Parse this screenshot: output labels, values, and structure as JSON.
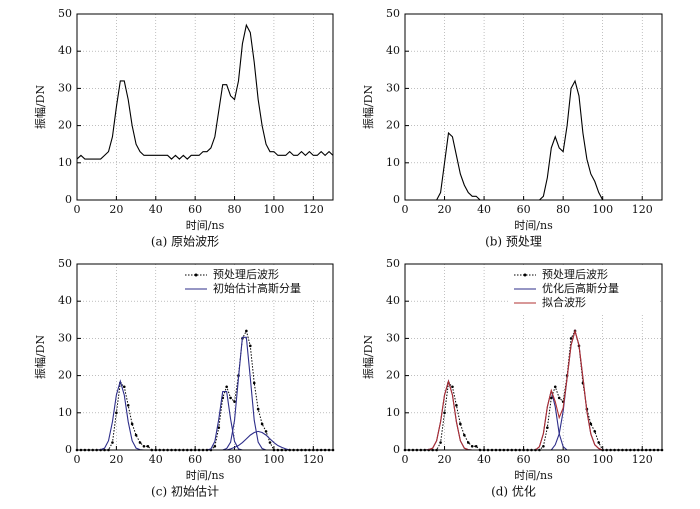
{
  "chart_data": [
    {
      "type": "line",
      "caption": "(a) 原始波形",
      "xlabel": "时间/ns",
      "ylabel": "振幅/DN",
      "xlim": [
        0,
        130
      ],
      "ylim": [
        0,
        50
      ],
      "xticks": [
        0,
        20,
        40,
        60,
        80,
        100,
        120
      ],
      "yticks": [
        0,
        10,
        20,
        30,
        40,
        50
      ],
      "grid": true,
      "x": [
        0,
        2,
        4,
        6,
        8,
        10,
        12,
        14,
        16,
        18,
        20,
        22,
        24,
        26,
        28,
        30,
        32,
        34,
        36,
        38,
        40,
        42,
        44,
        46,
        48,
        50,
        52,
        54,
        56,
        58,
        60,
        62,
        64,
        66,
        68,
        70,
        72,
        74,
        76,
        78,
        80,
        82,
        84,
        86,
        88,
        90,
        92,
        94,
        96,
        98,
        100,
        102,
        104,
        106,
        108,
        110,
        112,
        114,
        116,
        118,
        120,
        122,
        124,
        126,
        128,
        130
      ],
      "series": [
        {
          "color": "#000000",
          "style": "solid",
          "values": [
            11,
            12,
            11,
            11,
            11,
            11,
            11,
            12,
            13,
            17,
            25,
            32,
            32,
            27,
            20,
            15,
            13,
            12,
            12,
            12,
            12,
            12,
            12,
            12,
            11,
            12,
            11,
            12,
            11,
            12,
            12,
            12,
            13,
            13,
            14,
            17,
            24,
            31,
            31,
            28,
            27,
            32,
            42,
            47,
            45,
            37,
            27,
            20,
            15,
            13,
            13,
            12,
            12,
            12,
            13,
            12,
            12,
            13,
            12,
            13,
            12,
            12,
            13,
            12,
            13,
            12
          ]
        }
      ]
    },
    {
      "type": "line",
      "caption": "(b) 预处理",
      "xlabel": "时间/ns",
      "ylabel": "振幅/DN",
      "xlim": [
        0,
        130
      ],
      "ylim": [
        0,
        50
      ],
      "xticks": [
        0,
        20,
        40,
        60,
        80,
        100,
        120
      ],
      "yticks": [
        0,
        10,
        20,
        30,
        40,
        50
      ],
      "grid": true,
      "x": [
        0,
        2,
        4,
        6,
        8,
        10,
        12,
        14,
        16,
        18,
        20,
        22,
        24,
        26,
        28,
        30,
        32,
        34,
        36,
        38,
        40,
        42,
        44,
        46,
        48,
        50,
        52,
        54,
        56,
        58,
        60,
        62,
        64,
        66,
        68,
        70,
        72,
        74,
        76,
        78,
        80,
        82,
        84,
        86,
        88,
        90,
        92,
        94,
        96,
        98,
        100,
        102,
        104,
        106,
        108,
        110,
        112,
        114,
        116,
        118,
        120,
        122,
        124,
        126,
        128,
        130
      ],
      "series": [
        {
          "color": "#000000",
          "style": "solid",
          "values": [
            0,
            0,
            0,
            0,
            0,
            0,
            0,
            0,
            0,
            2,
            10,
            18,
            17,
            12,
            7,
            4,
            2,
            1,
            1,
            0,
            0,
            0,
            0,
            0,
            0,
            0,
            0,
            0,
            0,
            0,
            0,
            0,
            0,
            0,
            0,
            1,
            6,
            14,
            17,
            14,
            13,
            20,
            30,
            32,
            28,
            18,
            11,
            7,
            5,
            2,
            0,
            0,
            0,
            0,
            0,
            0,
            0,
            0,
            0,
            0,
            0,
            0,
            0,
            0,
            0,
            0
          ]
        }
      ]
    },
    {
      "type": "line",
      "caption": "(c) 初始估计",
      "xlabel": "时间/ns",
      "ylabel": "振幅/DN",
      "xlim": [
        0,
        130
      ],
      "ylim": [
        0,
        50
      ],
      "xticks": [
        0,
        20,
        40,
        60,
        80,
        100,
        120
      ],
      "yticks": [
        0,
        10,
        20,
        30,
        40,
        50
      ],
      "grid": true,
      "x": [
        0,
        2,
        4,
        6,
        8,
        10,
        12,
        14,
        16,
        18,
        20,
        22,
        24,
        26,
        28,
        30,
        32,
        34,
        36,
        38,
        40,
        42,
        44,
        46,
        48,
        50,
        52,
        54,
        56,
        58,
        60,
        62,
        64,
        66,
        68,
        70,
        72,
        74,
        76,
        78,
        80,
        82,
        84,
        86,
        88,
        90,
        92,
        94,
        96,
        98,
        100,
        102,
        104,
        106,
        108,
        110,
        112,
        114,
        116,
        118,
        120,
        122,
        124,
        126,
        128,
        130
      ],
      "series": [
        {
          "name": "预处理后波形",
          "color": "#000000",
          "style": "dotted",
          "values": [
            0,
            0,
            0,
            0,
            0,
            0,
            0,
            0,
            0,
            2,
            10,
            18,
            17,
            12,
            7,
            4,
            2,
            1,
            1,
            0,
            0,
            0,
            0,
            0,
            0,
            0,
            0,
            0,
            0,
            0,
            0,
            0,
            0,
            0,
            0,
            1,
            6,
            14,
            17,
            14,
            13,
            20,
            30,
            32,
            28,
            18,
            11,
            7,
            5,
            2,
            0,
            0,
            0,
            0,
            0,
            0,
            0,
            0,
            0,
            0,
            0,
            0,
            0,
            0,
            0,
            0
          ]
        },
        {
          "name": "初始估计高斯分量",
          "color": "#2e2e8a",
          "style": "solid",
          "values": [
            0,
            0,
            0,
            0,
            0,
            0,
            0.1,
            0.5,
            2.5,
            7.6,
            14.8,
            18.5,
            14.8,
            7.6,
            2.5,
            0.5,
            0.1,
            0,
            0,
            0,
            0,
            0,
            0,
            0,
            0,
            0,
            0,
            0,
            0,
            0,
            0,
            0,
            0,
            0,
            0,
            0,
            0,
            0,
            0,
            0,
            0,
            0,
            0,
            0,
            0,
            0,
            0,
            0,
            0,
            0,
            0,
            0,
            0,
            0,
            0,
            0,
            0,
            0,
            0,
            0,
            0,
            0,
            0,
            0,
            0,
            0
          ]
        },
        {
          "color": "#2e2e8a",
          "style": "solid",
          "values": [
            0,
            0,
            0,
            0,
            0,
            0,
            0,
            0,
            0,
            0,
            0,
            0,
            0,
            0,
            0,
            0,
            0,
            0,
            0,
            0,
            0,
            0,
            0,
            0,
            0,
            0,
            0,
            0,
            0,
            0,
            0,
            0,
            0,
            0,
            0.3,
            2.3,
            8.3,
            15.7,
            15.7,
            8.3,
            2.3,
            0.3,
            0,
            0,
            0,
            0,
            0,
            0,
            0,
            0,
            0,
            0,
            0,
            0,
            0,
            0,
            0,
            0,
            0,
            0,
            0,
            0,
            0,
            0,
            0,
            0
          ]
        },
        {
          "color": "#2e2e8a",
          "style": "solid",
          "values": [
            0,
            0,
            0,
            0,
            0,
            0,
            0,
            0,
            0,
            0,
            0,
            0,
            0,
            0,
            0,
            0,
            0,
            0,
            0,
            0,
            0,
            0,
            0,
            0,
            0,
            0,
            0,
            0,
            0,
            0,
            0,
            0,
            0,
            0,
            0,
            0,
            0,
            0,
            0.4,
            2.1,
            8,
            19.4,
            30.3,
            30.3,
            19.4,
            8,
            2.1,
            0.4,
            0,
            0,
            0,
            0,
            0,
            0,
            0,
            0,
            0,
            0,
            0,
            0,
            0,
            0,
            0,
            0,
            0,
            0
          ]
        },
        {
          "color": "#2e2e8a",
          "style": "solid",
          "values": [
            0,
            0,
            0,
            0,
            0,
            0,
            0,
            0,
            0,
            0,
            0,
            0,
            0,
            0,
            0,
            0,
            0,
            0,
            0,
            0,
            0,
            0,
            0,
            0,
            0,
            0,
            0,
            0,
            0,
            0,
            0,
            0,
            0,
            0,
            0,
            0,
            0,
            0,
            0,
            0.3,
            0.7,
            1.2,
            2,
            3,
            4,
            4.7,
            5,
            4.7,
            4,
            3,
            2,
            1.2,
            0.7,
            0.3,
            0,
            0,
            0,
            0,
            0,
            0,
            0,
            0,
            0,
            0,
            0,
            0
          ]
        }
      ]
    },
    {
      "type": "line",
      "caption": "(d) 优化",
      "xlabel": "时间/ns",
      "ylabel": "振幅/DN",
      "xlim": [
        0,
        130
      ],
      "ylim": [
        0,
        50
      ],
      "xticks": [
        0,
        20,
        40,
        60,
        80,
        100,
        120
      ],
      "yticks": [
        0,
        10,
        20,
        30,
        40,
        50
      ],
      "grid": true,
      "x": [
        0,
        2,
        4,
        6,
        8,
        10,
        12,
        14,
        16,
        18,
        20,
        22,
        24,
        26,
        28,
        30,
        32,
        34,
        36,
        38,
        40,
        42,
        44,
        46,
        48,
        50,
        52,
        54,
        56,
        58,
        60,
        62,
        64,
        66,
        68,
        70,
        72,
        74,
        76,
        78,
        80,
        82,
        84,
        86,
        88,
        90,
        92,
        94,
        96,
        98,
        100,
        102,
        104,
        106,
        108,
        110,
        112,
        114,
        116,
        118,
        120,
        122,
        124,
        126,
        128,
        130
      ],
      "series": [
        {
          "name": "预处理后波形",
          "color": "#000000",
          "style": "dotted",
          "values": [
            0,
            0,
            0,
            0,
            0,
            0,
            0,
            0,
            0,
            2,
            10,
            18,
            17,
            12,
            7,
            4,
            2,
            1,
            1,
            0,
            0,
            0,
            0,
            0,
            0,
            0,
            0,
            0,
            0,
            0,
            0,
            0,
            0,
            0,
            0,
            1,
            6,
            14,
            17,
            14,
            13,
            20,
            30,
            32,
            28,
            18,
            11,
            7,
            5,
            2,
            0,
            0,
            0,
            0,
            0,
            0,
            0,
            0,
            0,
            0,
            0,
            0,
            0,
            0,
            0,
            0
          ]
        },
        {
          "name": "优化后高斯分量",
          "color": "#2e2e8a",
          "style": "solid",
          "values": [
            0,
            0,
            0,
            0,
            0,
            0,
            0.1,
            0.5,
            2.5,
            7.6,
            14.8,
            18.5,
            14.8,
            7.6,
            2.5,
            0.5,
            0.1,
            0,
            0,
            0,
            0,
            0,
            0,
            0,
            0,
            0,
            0,
            0,
            0,
            0,
            0,
            0,
            0,
            0,
            0,
            0,
            0,
            0,
            0,
            0,
            0,
            0,
            0,
            0,
            0,
            0,
            0,
            0,
            0,
            0,
            0,
            0,
            0,
            0,
            0,
            0,
            0,
            0,
            0,
            0,
            0,
            0,
            0,
            0,
            0,
            0
          ]
        },
        {
          "color": "#2e2e8a",
          "style": "solid",
          "values": [
            0,
            0,
            0,
            0,
            0,
            0,
            0,
            0,
            0,
            0,
            0,
            0,
            0,
            0,
            0,
            0,
            0,
            0,
            0,
            0,
            0,
            0,
            0,
            0,
            0,
            0,
            0,
            0,
            0,
            0,
            0,
            0,
            0,
            0,
            0.9,
            4.4,
            11.6,
            16,
            11.6,
            4.4,
            0.9,
            0,
            0,
            0,
            0,
            0,
            0,
            0,
            0,
            0,
            0,
            0,
            0,
            0,
            0,
            0,
            0,
            0,
            0,
            0,
            0,
            0,
            0,
            0,
            0,
            0
          ]
        },
        {
          "color": "#2e2e8a",
          "style": "solid",
          "values": [
            0,
            0,
            0,
            0,
            0,
            0,
            0,
            0,
            0,
            0,
            0,
            0,
            0,
            0,
            0,
            0,
            0,
            0,
            0,
            0,
            0,
            0,
            0,
            0,
            0,
            0,
            0,
            0,
            0,
            0,
            0,
            0,
            0,
            0,
            0,
            0,
            0,
            0,
            1.4,
            4.3,
            10.4,
            19.4,
            28.2,
            32,
            28.2,
            19.4,
            10.4,
            4.3,
            1.4,
            0.4,
            0,
            0,
            0,
            0,
            0,
            0,
            0,
            0,
            0,
            0,
            0,
            0,
            0,
            0,
            0,
            0
          ]
        },
        {
          "name": "拟合波形",
          "color": "#b03030",
          "style": "solid",
          "values": [
            0,
            0,
            0,
            0,
            0,
            0,
            0.1,
            0.5,
            2.5,
            7.6,
            14.8,
            18.5,
            14.8,
            7.6,
            2.5,
            0.5,
            0.1,
            0,
            0,
            0,
            0,
            0,
            0,
            0,
            0,
            0,
            0,
            0,
            0,
            0,
            0,
            0,
            0,
            0,
            0.9,
            4.4,
            11.6,
            16,
            13,
            8.7,
            11.3,
            19.4,
            28.2,
            32,
            28.2,
            19.4,
            10.4,
            4.3,
            1.4,
            0.4,
            0,
            0,
            0,
            0,
            0,
            0,
            0,
            0,
            0,
            0,
            0,
            0,
            0,
            0,
            0,
            0
          ]
        }
      ]
    }
  ]
}
